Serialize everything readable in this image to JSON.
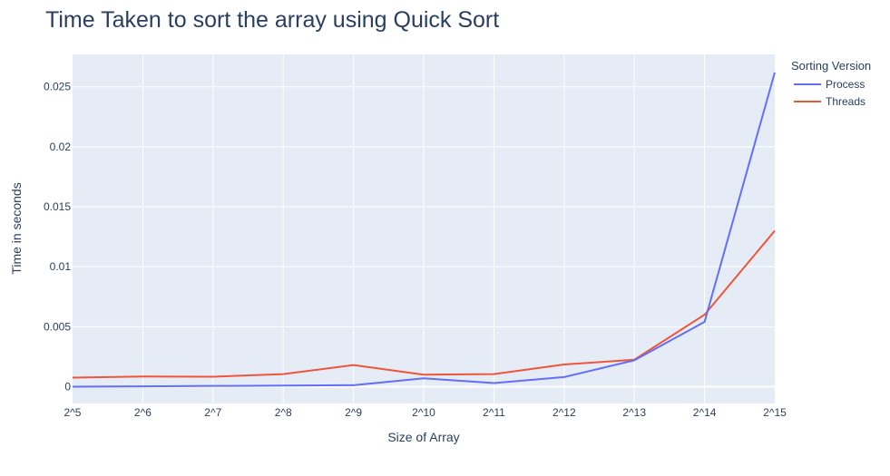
{
  "chart_data": {
    "type": "line",
    "title": "Time Taken to sort the array using Quick Sort",
    "xlabel": "Size of Array",
    "ylabel": "Time in seconds",
    "categories": [
      "2^5",
      "2^6",
      "2^7",
      "2^8",
      "2^9",
      "2^10",
      "2^11",
      "2^12",
      "2^13",
      "2^14",
      "2^15"
    ],
    "ylim": [
      -0.0014,
      0.0277
    ],
    "yticks": [
      0,
      0.005,
      0.01,
      0.015,
      0.02,
      0.025
    ],
    "ytick_labels": [
      "0",
      "0.005",
      "0.01",
      "0.015",
      "0.02",
      "0.025"
    ],
    "grid": true,
    "legend": {
      "title": "Sorting Version",
      "placement": "right"
    },
    "series": [
      {
        "name": "Process",
        "color": "#636efa",
        "values": [
          0.0,
          3e-05,
          6e-05,
          9e-05,
          0.00012,
          0.0007,
          0.0003,
          0.0008,
          0.0022,
          0.0054,
          0.0262
        ]
      },
      {
        "name": "Threads",
        "color": "#ef553b",
        "values": [
          0.00075,
          0.00085,
          0.00083,
          0.00105,
          0.0018,
          0.001,
          0.00105,
          0.00185,
          0.00225,
          0.006,
          0.013
        ]
      }
    ],
    "plot_bg": "#e5ecf6",
    "grid_color": "#ffffff"
  }
}
